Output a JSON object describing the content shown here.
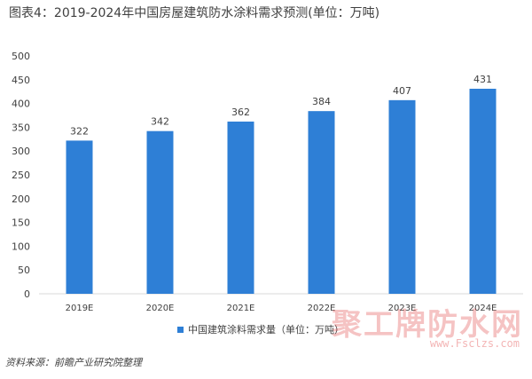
{
  "title": "图表4：2019-2024年中国房屋建筑防水涂料需求预测(单位：万吨)",
  "source": "资料来源：前瞻产业研究院整理",
  "watermark": "聚工牌防水网",
  "watermark_url": "www.Fsclzs.com",
  "colors": {
    "bar": "#2e7fd6",
    "axis": "#d9d9d9",
    "text": "#404040"
  },
  "chart_data": {
    "type": "bar",
    "title": "图表4：2019-2024年中国房屋建筑防水涂料需求预测(单位：万吨)",
    "categories": [
      "2019E",
      "2020E",
      "2021E",
      "2022E",
      "2023E",
      "2024E"
    ],
    "series": [
      {
        "name": "中国建筑涂料需求量（单位：万吨）",
        "values": [
          322,
          342,
          362,
          384,
          407,
          431
        ]
      }
    ],
    "ylim": [
      0,
      500
    ],
    "yticks": [
      0,
      50,
      100,
      150,
      200,
      250,
      300,
      350,
      400,
      450,
      500
    ],
    "xlabel": "",
    "ylabel": "",
    "grid": false,
    "legend_position": "bottom"
  }
}
